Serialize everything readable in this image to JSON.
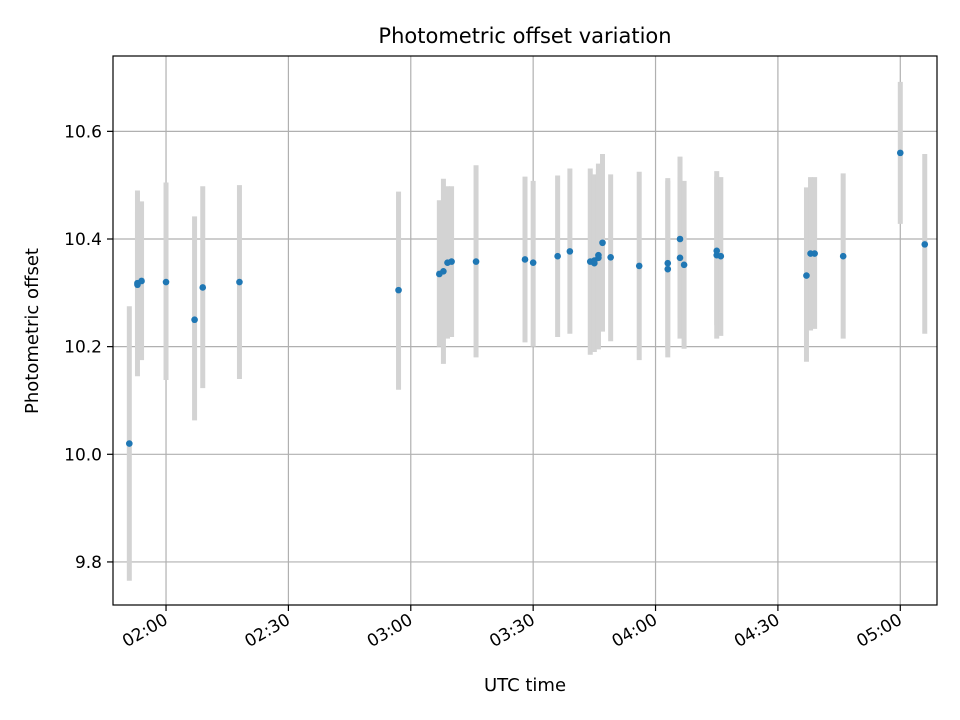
{
  "chart_data": {
    "type": "scatter",
    "title": "Photometric offset variation",
    "xlabel": "UTC time",
    "ylabel": "Photometric offset",
    "grid": true,
    "x_ticks": [
      "02:00",
      "02:30",
      "03:00",
      "03:30",
      "04:00",
      "04:30",
      "05:00"
    ],
    "y_ticks": [
      "9.8",
      "10.0",
      "10.2",
      "10.4",
      "10.6"
    ],
    "xlim": [
      "01:47",
      "05:09"
    ],
    "ylim": [
      9.72,
      10.74
    ],
    "colors": {
      "point": "#1f77b4",
      "errorbar": "#d3d3d3",
      "grid": "#b0b0b0"
    },
    "series": [
      {
        "points": [
          {
            "x": "01:51",
            "y": 10.02,
            "lo": 9.765,
            "hi": 10.275
          },
          {
            "x": "01:53",
            "y": 10.315,
            "lo": 10.145,
            "hi": 10.49
          },
          {
            "x": "01:53",
            "y": 10.318,
            "lo": 10.2,
            "hi": 10.45
          },
          {
            "x": "01:54",
            "y": 10.322,
            "lo": 10.175,
            "hi": 10.47
          },
          {
            "x": "02:00",
            "y": 10.32,
            "lo": 10.138,
            "hi": 10.505
          },
          {
            "x": "02:07",
            "y": 10.25,
            "lo": 10.063,
            "hi": 10.442
          },
          {
            "x": "02:09",
            "y": 10.31,
            "lo": 10.123,
            "hi": 10.498
          },
          {
            "x": "02:18",
            "y": 10.32,
            "lo": 10.14,
            "hi": 10.5
          },
          {
            "x": "02:57",
            "y": 10.305,
            "lo": 10.12,
            "hi": 10.488
          },
          {
            "x": "03:07",
            "y": 10.335,
            "lo": 10.2,
            "hi": 10.472
          },
          {
            "x": "03:08",
            "y": 10.34,
            "lo": 10.168,
            "hi": 10.512
          },
          {
            "x": "03:09",
            "y": 10.356,
            "lo": 10.215,
            "hi": 10.498
          },
          {
            "x": "03:10",
            "y": 10.358,
            "lo": 10.218,
            "hi": 10.498
          },
          {
            "x": "03:16",
            "y": 10.358,
            "lo": 10.18,
            "hi": 10.537
          },
          {
            "x": "03:28",
            "y": 10.362,
            "lo": 10.208,
            "hi": 10.516
          },
          {
            "x": "03:30",
            "y": 10.356,
            "lo": 10.2,
            "hi": 10.508
          },
          {
            "x": "03:36",
            "y": 10.368,
            "lo": 10.218,
            "hi": 10.518
          },
          {
            "x": "03:39",
            "y": 10.377,
            "lo": 10.224,
            "hi": 10.531
          },
          {
            "x": "03:44",
            "y": 10.358,
            "lo": 10.185,
            "hi": 10.531
          },
          {
            "x": "03:45",
            "y": 10.355,
            "lo": 10.19,
            "hi": 10.52
          },
          {
            "x": "03:45",
            "y": 10.36,
            "lo": 10.2,
            "hi": 10.515
          },
          {
            "x": "03:46",
            "y": 10.37,
            "lo": 10.2,
            "hi": 10.54
          },
          {
            "x": "03:46",
            "y": 10.365,
            "lo": 10.195,
            "hi": 10.53
          },
          {
            "x": "03:47",
            "y": 10.393,
            "lo": 10.228,
            "hi": 10.558
          },
          {
            "x": "03:49",
            "y": 10.366,
            "lo": 10.21,
            "hi": 10.52
          },
          {
            "x": "03:56",
            "y": 10.35,
            "lo": 10.175,
            "hi": 10.525
          },
          {
            "x": "04:03",
            "y": 10.355,
            "lo": 10.195,
            "hi": 10.513
          },
          {
            "x": "04:03",
            "y": 10.344,
            "lo": 10.18,
            "hi": 10.508
          },
          {
            "x": "04:06",
            "y": 10.4,
            "lo": 10.252,
            "hi": 10.553
          },
          {
            "x": "04:06",
            "y": 10.365,
            "lo": 10.215,
            "hi": 10.516
          },
          {
            "x": "04:07",
            "y": 10.352,
            "lo": 10.196,
            "hi": 10.508
          },
          {
            "x": "04:15",
            "y": 10.37,
            "lo": 10.215,
            "hi": 10.526
          },
          {
            "x": "04:15",
            "y": 10.378,
            "lo": 10.24,
            "hi": 10.516
          },
          {
            "x": "04:16",
            "y": 10.368,
            "lo": 10.22,
            "hi": 10.515
          },
          {
            "x": "04:37",
            "y": 10.332,
            "lo": 10.172,
            "hi": 10.496
          },
          {
            "x": "04:38",
            "y": 10.373,
            "lo": 10.23,
            "hi": 10.515
          },
          {
            "x": "04:39",
            "y": 10.373,
            "lo": 10.233,
            "hi": 10.515
          },
          {
            "x": "04:46",
            "y": 10.368,
            "lo": 10.215,
            "hi": 10.522
          },
          {
            "x": "05:00",
            "y": 10.56,
            "lo": 10.428,
            "hi": 10.692
          },
          {
            "x": "05:06",
            "y": 10.39,
            "lo": 10.224,
            "hi": 10.558
          }
        ]
      }
    ]
  }
}
